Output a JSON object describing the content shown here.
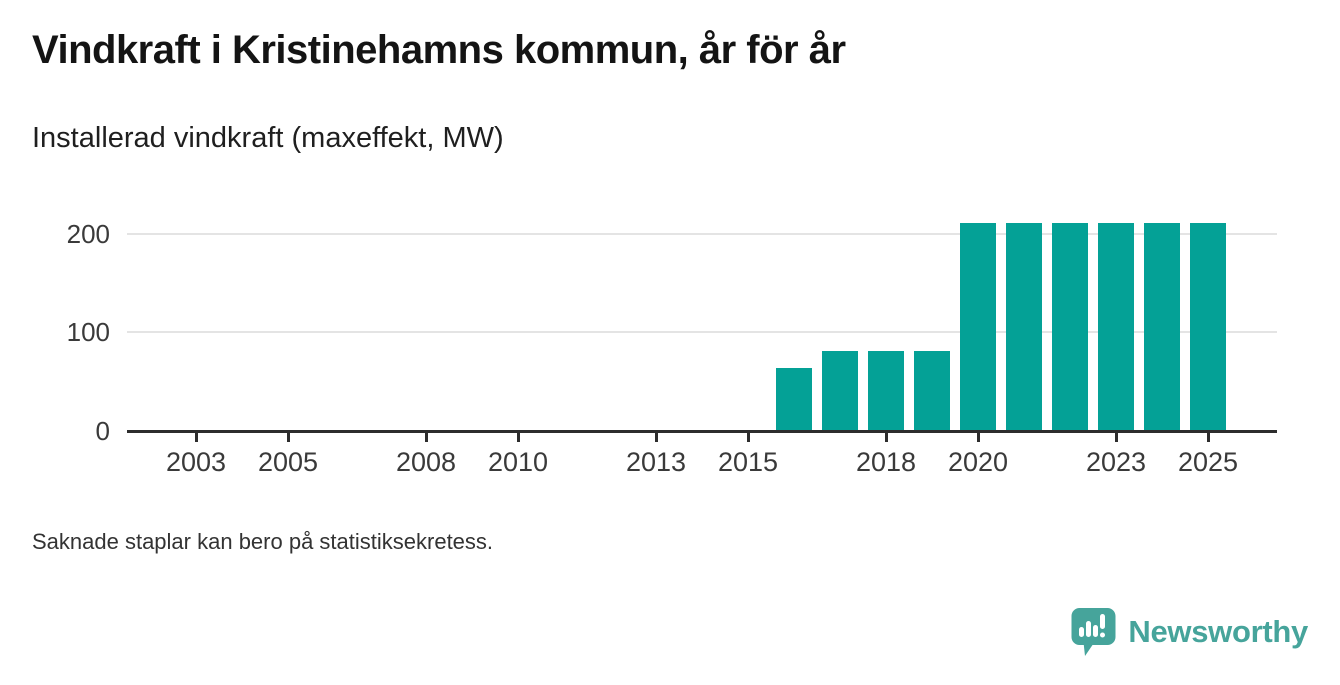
{
  "header": {
    "title": "Vindkraft i Kristinehamns kommun, år för år",
    "subtitle": "Installerad vindkraft (maxeffekt, MW)"
  },
  "chart_data": {
    "type": "bar",
    "title": "Vindkraft i Kristinehamns kommun, år för år",
    "subtitle": "Installerad vindkraft (maxeffekt, MW)",
    "ylabel": "Installerad vindkraft (maxeffekt, MW)",
    "xlabel": "",
    "unit": "MW",
    "x_domain": [
      2002,
      2026
    ],
    "ylim": [
      0,
      224
    ],
    "y_ticks": [
      0,
      100,
      200
    ],
    "x_ticks": [
      2003,
      2005,
      2008,
      2010,
      2013,
      2015,
      2018,
      2020,
      2023,
      2025
    ],
    "grid": "horizontal-only",
    "legend": "none",
    "bar_color": "#04a196",
    "series": [
      {
        "name": "Installerad vindkraft (maxeffekt, MW)",
        "points": [
          {
            "year": 2016,
            "value": 64
          },
          {
            "year": 2017,
            "value": 81
          },
          {
            "year": 2018,
            "value": 81
          },
          {
            "year": 2019,
            "value": 81
          },
          {
            "year": 2020,
            "value": 211
          },
          {
            "year": 2021,
            "value": 211
          },
          {
            "year": 2022,
            "value": 211
          },
          {
            "year": 2023,
            "value": 211
          },
          {
            "year": 2024,
            "value": 211
          },
          {
            "year": 2025,
            "value": 211
          }
        ]
      }
    ]
  },
  "footer": {
    "note": "Saknade staplar kan bero på statistiksekretess."
  },
  "branding": {
    "logo_text": "Newsworthy",
    "logo_color": "#46a49b",
    "logo_icon": "speech-bubble-bar-chart-icon"
  }
}
